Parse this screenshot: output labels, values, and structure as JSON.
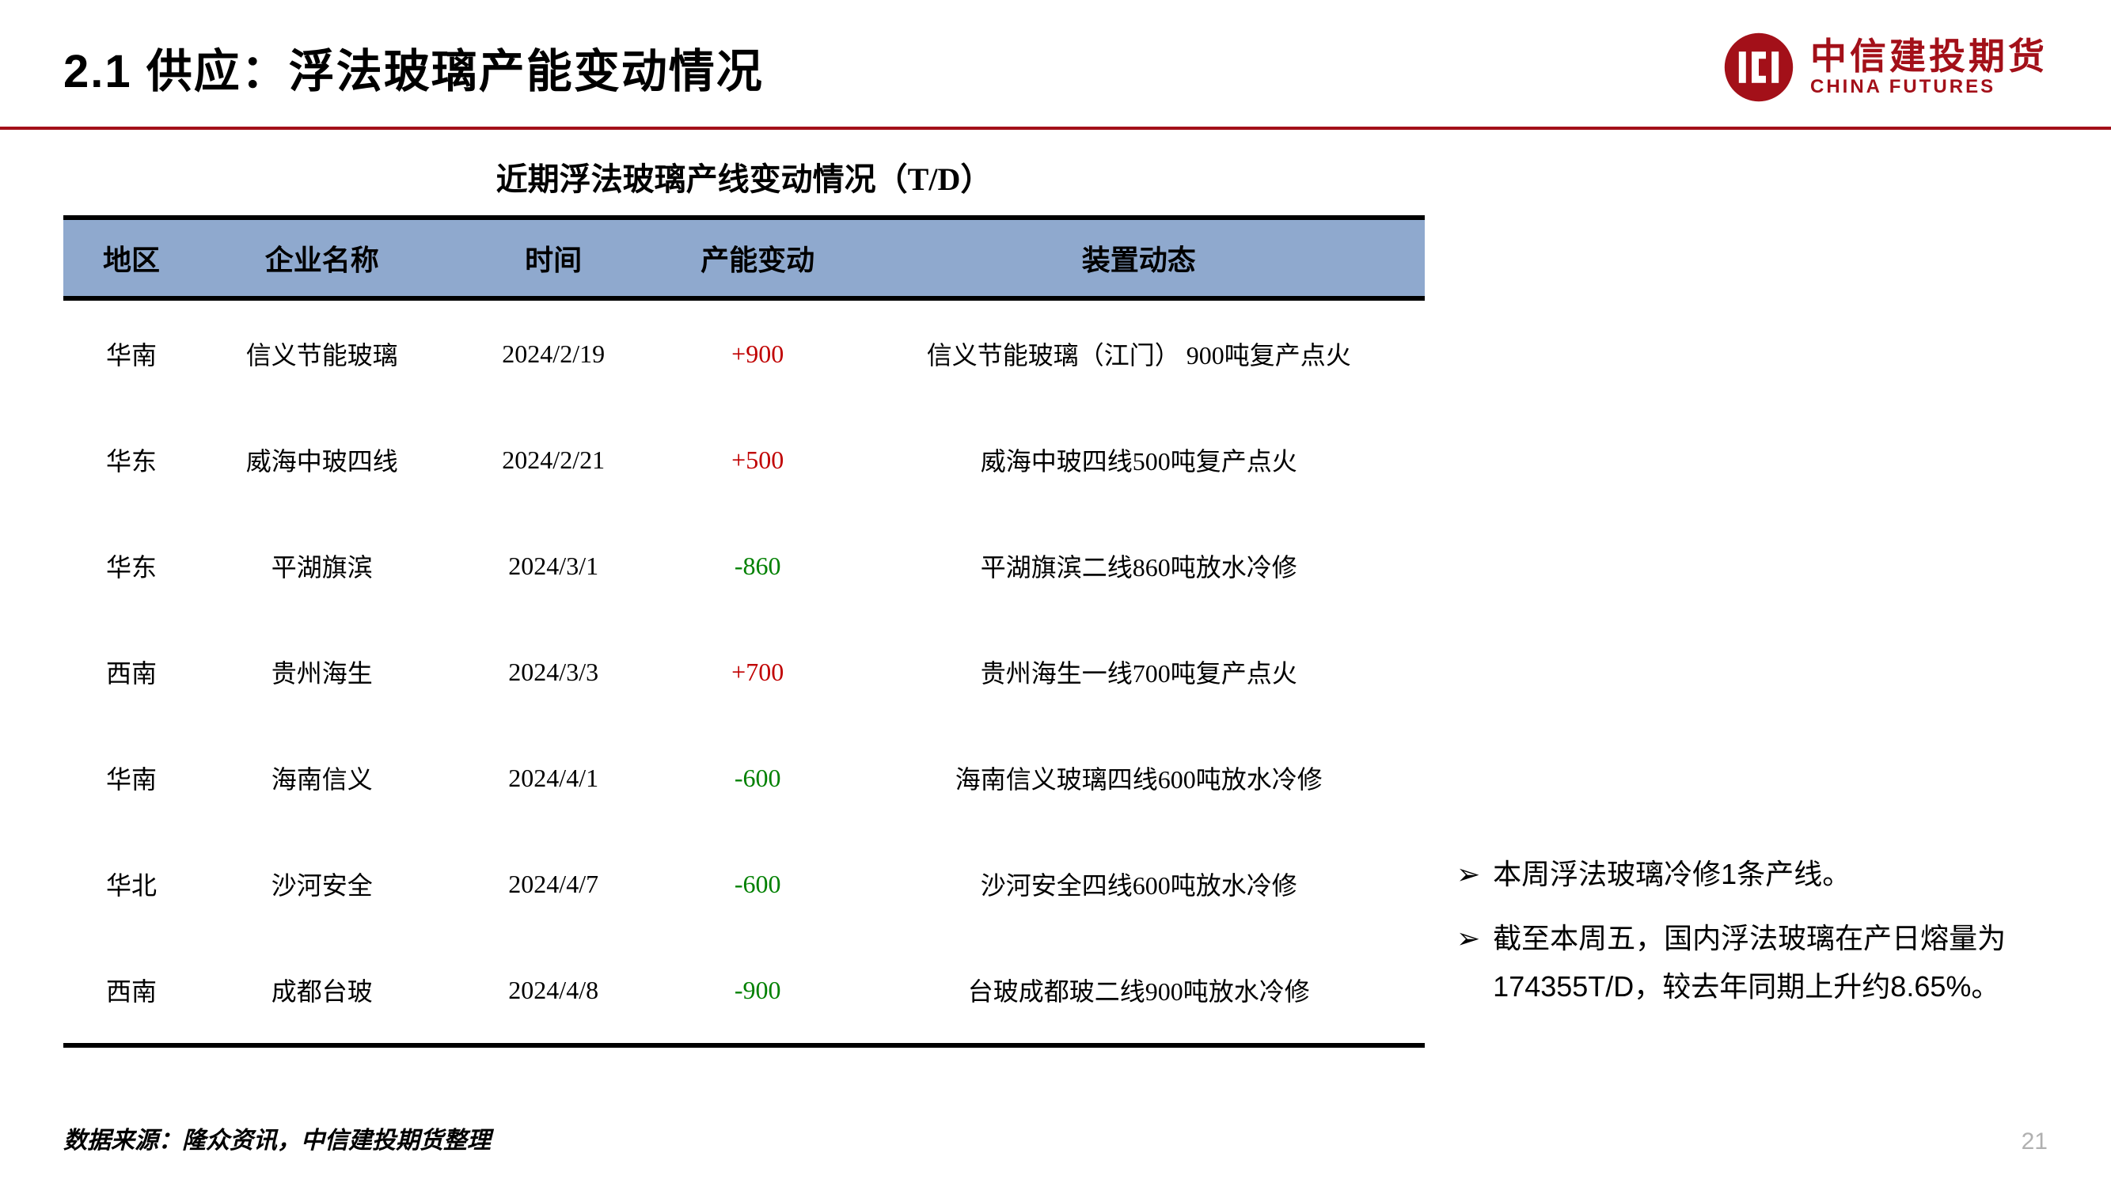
{
  "header": {
    "title": "2.1 供应：浮法玻璃产能变动情况",
    "logo_cn": "中信建投期货",
    "logo_en": "CHINA FUTURES",
    "logo_color": "#a31019"
  },
  "table": {
    "title": "近期浮法玻璃产线变动情况（T/D）",
    "header_bg": "#8fa9ce",
    "columns": [
      "地区",
      "企业名称",
      "时间",
      "产能变动",
      "装置动态"
    ],
    "positive_color": "#c00000",
    "negative_color": "#008000",
    "rows": [
      {
        "region": "华南",
        "company": "信义节能玻璃",
        "date": "2024/2/19",
        "change": "+900",
        "change_sign": "pos",
        "status": "信义节能玻璃（江门） 900吨复产点火"
      },
      {
        "region": "华东",
        "company": "威海中玻四线",
        "date": "2024/2/21",
        "change": "+500",
        "change_sign": "pos",
        "status": "威海中玻四线500吨复产点火"
      },
      {
        "region": "华东",
        "company": "平湖旗滨",
        "date": "2024/3/1",
        "change": "-860",
        "change_sign": "neg",
        "status": "平湖旗滨二线860吨放水冷修"
      },
      {
        "region": "西南",
        "company": "贵州海生",
        "date": "2024/3/3",
        "change": "+700",
        "change_sign": "pos",
        "status": "贵州海生一线700吨复产点火"
      },
      {
        "region": "华南",
        "company": "海南信义",
        "date": "2024/4/1",
        "change": "-600",
        "change_sign": "neg",
        "status": "海南信义玻璃四线600吨放水冷修"
      },
      {
        "region": "华北",
        "company": "沙河安全",
        "date": "2024/4/7",
        "change": "-600",
        "change_sign": "neg",
        "status": "沙河安全四线600吨放水冷修"
      },
      {
        "region": "西南",
        "company": "成都台玻",
        "date": "2024/4/8",
        "change": "-900",
        "change_sign": "neg",
        "status": "台玻成都玻二线900吨放水冷修"
      }
    ]
  },
  "notes": {
    "bullet": "➢",
    "items": [
      "本周浮法玻璃冷修1条产线。",
      "截至本周五，国内浮法玻璃在产日熔量为174355T/D，较去年同期上升约8.65%。"
    ]
  },
  "footer": {
    "source": "数据来源：隆众资讯，中信建投期货整理",
    "page_number": "21"
  }
}
